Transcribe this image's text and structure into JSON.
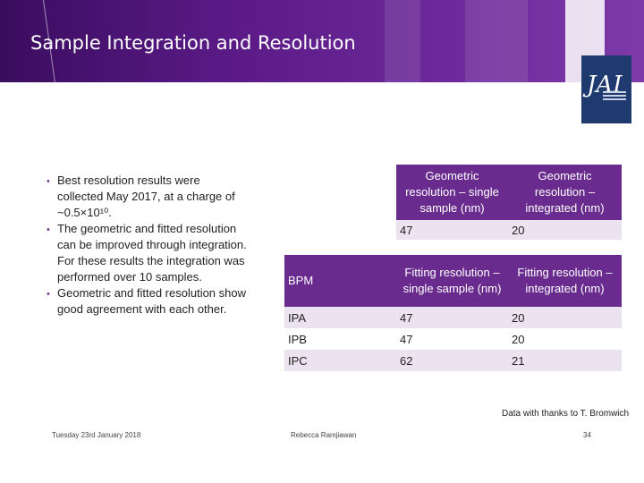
{
  "slide": {
    "title": "Sample Integration and Resolution",
    "bullets": [
      "Best resolution results were collected May 2017, at a charge of ~0.5×10¹⁰.",
      "The geometric and fitted resolution can be improved through integration. For these results the integration was performed over 10 samples.",
      "Geometric and fitted resolution show good agreement with each other."
    ],
    "logo_text": "JAI",
    "colors": {
      "accent": "#6a2b8e",
      "header": "#4a1470",
      "row_light": "#ece3f1",
      "logo_bg": "#1f3a6e"
    }
  },
  "table": {
    "geo_headers": [
      "Geometric resolution – single sample (nm)",
      "Geometric resolution – integrated (nm)"
    ],
    "geo_values": [
      "47",
      "20"
    ],
    "fit_row_label": "BPM",
    "fit_headers": [
      "Fitting resolution – single sample (nm)",
      "Fitting resolution – integrated (nm)"
    ],
    "rows": [
      {
        "label": "IPA",
        "single": "47",
        "integrated": "20"
      },
      {
        "label": "IPB",
        "single": "47",
        "integrated": "20"
      },
      {
        "label": "IPC",
        "single": "62",
        "integrated": "21"
      }
    ]
  },
  "credits": "Data with thanks to T. Bromwich",
  "footer": {
    "date": "Tuesday 23rd January 2018",
    "author": "Rebecca Ramjiawan",
    "page": "34"
  }
}
